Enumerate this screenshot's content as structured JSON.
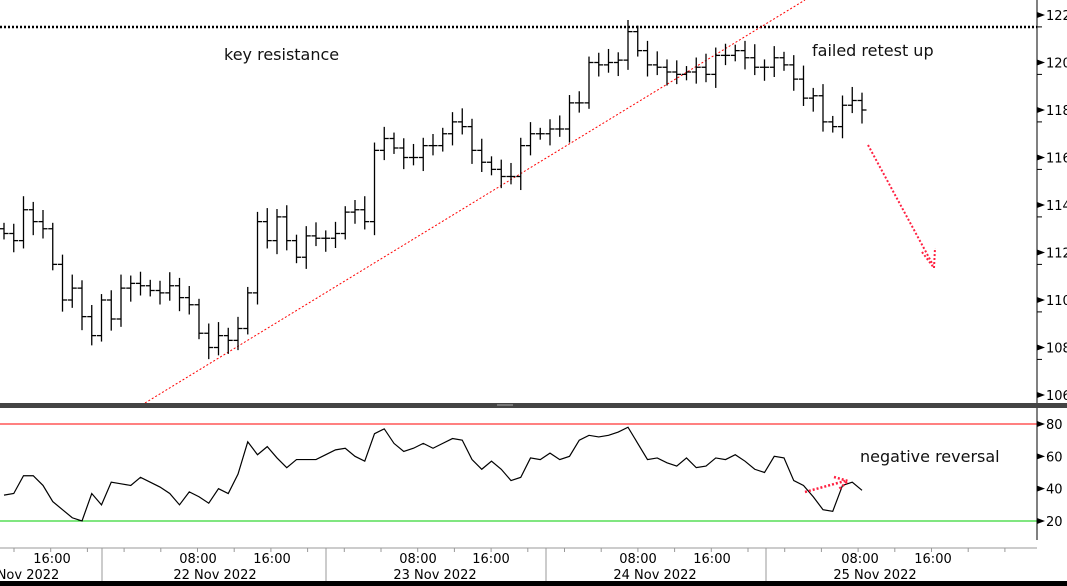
{
  "chart_data": [
    {
      "type": "ohlc",
      "panel": "price",
      "ylim": [
        105.5,
        122.5
      ],
      "yticks": [
        106,
        108,
        110,
        112,
        114,
        116,
        118,
        120,
        122
      ],
      "grid": false,
      "close": [
        112.8,
        112.5,
        113.8,
        113.3,
        113.0,
        111.5,
        110.0,
        110.5,
        109.3,
        108.5,
        110.0,
        109.2,
        110.5,
        110.7,
        110.6,
        110.4,
        110.3,
        110.6,
        110.1,
        109.8,
        108.6,
        108.0,
        108.5,
        108.3,
        108.8,
        110.3,
        113.3,
        112.5,
        113.5,
        112.5,
        111.8,
        112.7,
        112.6,
        112.6,
        112.8,
        113.7,
        113.8,
        113.3,
        116.3,
        116.8,
        116.4,
        116.0,
        116.0,
        116.5,
        116.5,
        117.0,
        117.5,
        117.3,
        116.3,
        115.8,
        115.5,
        115.2,
        115.2,
        116.5,
        117.0,
        117.0,
        117.2,
        117.2,
        118.3,
        118.3,
        120.0,
        119.9,
        120.0,
        120.1,
        121.3,
        120.5,
        119.9,
        119.8,
        119.6,
        119.5,
        119.6,
        119.8,
        119.5,
        120.3,
        120.3,
        120.5,
        120.2,
        119.8,
        119.8,
        120.2,
        119.9,
        119.3,
        118.5,
        118.6,
        117.5,
        117.3,
        118.2,
        118.4,
        118.0
      ],
      "resistance_level": 121.5,
      "annotations": {
        "resistance": "key resistance",
        "retest": "failed retest up"
      }
    },
    {
      "type": "line",
      "panel": "rsi",
      "ylim": [
        5,
        90
      ],
      "yticks": [
        20,
        40,
        60,
        80
      ],
      "overbought": 80,
      "oversold": 20,
      "values": [
        36,
        37,
        48,
        48,
        42,
        32,
        27,
        22,
        20,
        37,
        30,
        44,
        43,
        42,
        47,
        44,
        41,
        37,
        30,
        38,
        35,
        31,
        40,
        37,
        49,
        69,
        61,
        66,
        59,
        53,
        58,
        58,
        58,
        61,
        64,
        65,
        60,
        57,
        74,
        77,
        68,
        63,
        65,
        68,
        65,
        68,
        71,
        70,
        58,
        52,
        57,
        52,
        45,
        47,
        59,
        58,
        62,
        58,
        60,
        70,
        73,
        72,
        73,
        75,
        78,
        68,
        58,
        59,
        56,
        54,
        59,
        53,
        54,
        59,
        58,
        61,
        57,
        52,
        50,
        60,
        59,
        45,
        42,
        35,
        27,
        26,
        42,
        44,
        39
      ],
      "annotation": "negative reversal"
    }
  ],
  "x_axis": {
    "time_labels": [
      "16:00",
      "08:00",
      "16:00",
      "08:00",
      "16:00",
      "08:00",
      "16:00",
      "08:00",
      "16:00"
    ],
    "date_labels": [
      "Nov 2022",
      "22 Nov 2022",
      "23 Nov 2022",
      "24 Nov 2022",
      "25 Nov 2022"
    ]
  },
  "colors": {
    "bars": "#000000",
    "trendline": "#ff0000",
    "overbought": "#ff0000",
    "oversold": "#00cc00",
    "arrow": "#ff2040"
  }
}
